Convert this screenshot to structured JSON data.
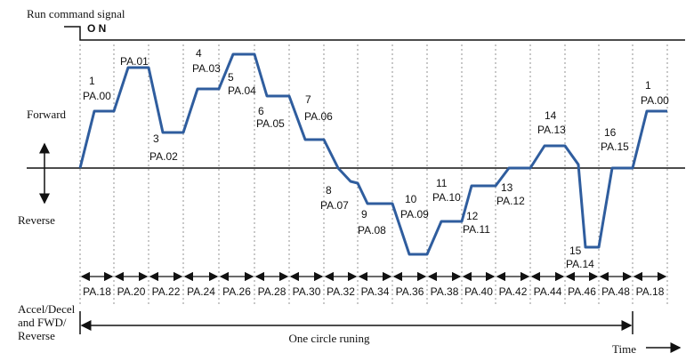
{
  "header": {
    "run_signal": "Run command signal",
    "on": "O N"
  },
  "axis": {
    "forward": "Forward",
    "reverse": "Reverse",
    "time": "Time"
  },
  "footer": {
    "left_lines": [
      "Accel/Decel",
      "and FWD/",
      "Reverse"
    ],
    "cycle": "One circle runing"
  },
  "steps": [
    {
      "number": "1",
      "code": "PA.00"
    },
    {
      "code": "PA.01"
    },
    {
      "number": "3",
      "code": "PA.02"
    },
    {
      "number": "4",
      "code": "PA.03"
    },
    {
      "number": "5",
      "code": "PA.04"
    },
    {
      "number": "6",
      "code": "PA.05"
    },
    {
      "number": "7",
      "code": "PA.06"
    },
    {
      "number": "8",
      "code": "PA.07"
    },
    {
      "number": "9",
      "code": "PA.08"
    },
    {
      "number": "10",
      "code": "PA.09"
    },
    {
      "number": "11",
      "code": "PA.10"
    },
    {
      "number": "12",
      "code": "PA.11"
    },
    {
      "number": "13",
      "code": "PA.12"
    },
    {
      "number": "14",
      "code": "PA.13"
    },
    {
      "number": "15",
      "code": "PA.14"
    },
    {
      "number": "16",
      "code": "PA.15"
    },
    {
      "number": "1",
      "code": "PA.00"
    }
  ],
  "segments": [
    "PA.18",
    "PA.20",
    "PA.22",
    "PA.24",
    "PA.26",
    "PA.28",
    "PA.30",
    "PA.32",
    "PA.34",
    "PA.36",
    "PA.38",
    "PA.40",
    "PA.42",
    "PA.44",
    "PA.46",
    "PA.48",
    "PA.18"
  ]
}
